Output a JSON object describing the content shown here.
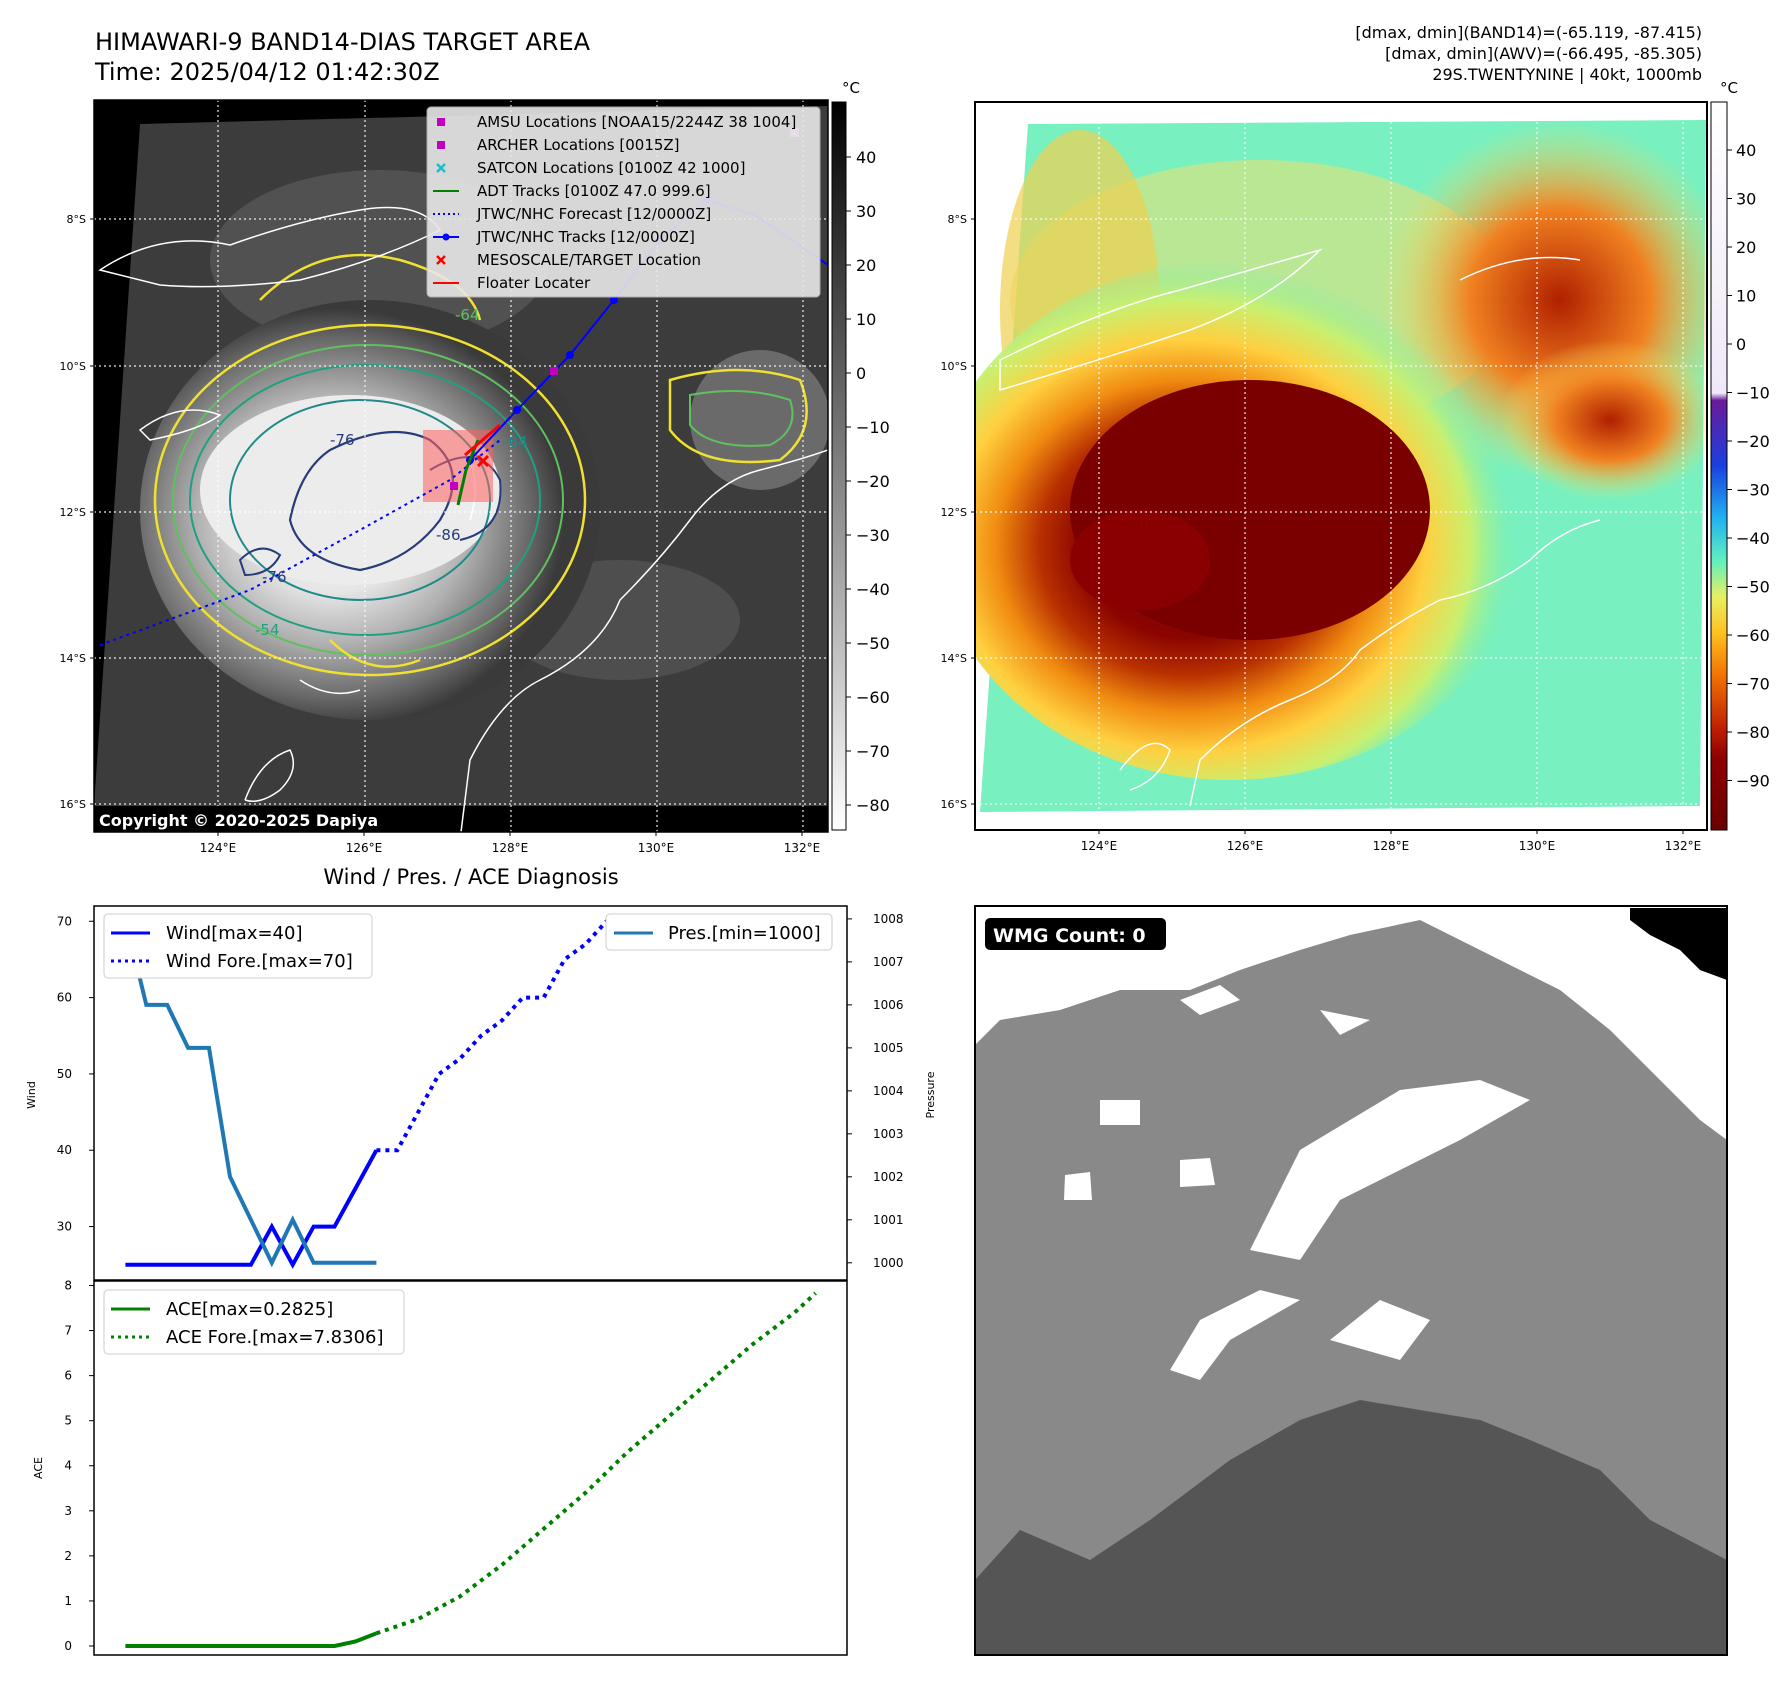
{
  "header": {
    "title_line1": "HIMAWARI-9 BAND14-DIAS TARGET AREA",
    "title_line2": "Time: 2025/04/12 01:42:30Z",
    "info_line1": "[dmax, dmin](BAND14)=(-65.119, -87.415)",
    "info_line2": "[dmax, dmin](AWV)=(-66.495, -85.305)",
    "info_line3": "29S.TWENTYNINE | 40kt, 1000mb"
  },
  "ir_panel": {
    "colorbar_unit": "°C",
    "colorbar_ticks": [
      "40",
      "30",
      "20",
      "10",
      "0",
      "−10",
      "−20",
      "−30",
      "−40",
      "−50",
      "−60",
      "−70",
      "−80"
    ],
    "copyright": "Copyright © 2020-2025 Dapiya",
    "lat_labels": [
      "8°S",
      "10°S",
      "12°S",
      "14°S",
      "16°S"
    ],
    "lon_labels": [
      "124°E",
      "126°E",
      "128°E",
      "130°E",
      "132°E"
    ],
    "contour_labels": [
      "-76",
      "-64",
      "-54",
      "-76",
      "-86",
      "-64"
    ],
    "legend": [
      {
        "label": "AMSU Locations [NOAA15/2244Z 38 1004]",
        "color": "#c000c0",
        "marker": "square"
      },
      {
        "label": "ARCHER Locations [0015Z]",
        "color": "#c000c0",
        "marker": "square"
      },
      {
        "label": "SATCON Locations [0100Z 42 1000]",
        "color": "#17becf",
        "marker": "x"
      },
      {
        "label": "ADT Tracks [0100Z 47.0 999.6]",
        "color": "#008000",
        "marker": "line"
      },
      {
        "label": "JTWC/NHC Forecast [12/0000Z]",
        "color": "#0000ff",
        "marker": "dotted"
      },
      {
        "label": "JTWC/NHC Tracks [12/0000Z]",
        "color": "#0000ff",
        "marker": "line-dot"
      },
      {
        "label": "MESOSCALE/TARGET Location",
        "color": "#ff0000",
        "marker": "x"
      },
      {
        "label": "Floater Locater",
        "color": "#ff0000",
        "marker": "line"
      }
    ]
  },
  "color_panel": {
    "colorbar_unit": "°C",
    "colorbar_ticks": [
      "40",
      "30",
      "20",
      "10",
      "0",
      "−10",
      "−20",
      "−30",
      "−40",
      "−50",
      "−60",
      "−70",
      "−80",
      "−90"
    ],
    "lat_labels": [
      "8°S",
      "10°S",
      "12°S",
      "14°S",
      "16°S"
    ],
    "lon_labels": [
      "124°E",
      "126°E",
      "128°E",
      "130°E",
      "132°E"
    ]
  },
  "wmg_panel": {
    "badge": "WMG Count: 0"
  },
  "chart_data": [
    {
      "type": "line",
      "title": "Wind / Pres. / ACE Diagnosis",
      "ylabel": "Wind",
      "ylabel_right": "Pressure",
      "ylim": [
        23,
        72
      ],
      "ylim_right": [
        999.6,
        1008.3
      ],
      "yticks": [
        30,
        40,
        50,
        60,
        70
      ],
      "yticks_right": [
        1000,
        1001,
        1002,
        1003,
        1004,
        1005,
        1006,
        1007,
        1008
      ],
      "legend_left": [
        "Wind[max=40]",
        "Wind Fore.[max=70]"
      ],
      "legend_right": [
        "Pres.[min=1000]"
      ],
      "series": [
        {
          "name": "Wind[max=40]",
          "axis": "left",
          "style": "solid",
          "color": "#0000ff",
          "x": [
            0,
            1,
            2,
            3,
            4,
            5,
            6,
            7,
            8,
            9,
            10,
            11,
            12
          ],
          "values": [
            25,
            25,
            25,
            25,
            25,
            25,
            25,
            30,
            25,
            30,
            30,
            35,
            40
          ]
        },
        {
          "name": "Wind Fore.[max=70]",
          "axis": "left",
          "style": "dotted",
          "color": "#0000ff",
          "x": [
            12,
            13,
            14,
            15,
            16,
            17,
            18,
            19,
            20,
            21,
            22,
            23,
            24,
            25,
            26,
            27,
            28,
            29,
            30,
            31,
            32,
            33
          ],
          "values": [
            40,
            40,
            45,
            50,
            52,
            55,
            57,
            60,
            60,
            65,
            67,
            70,
            70,
            70,
            70,
            70,
            70,
            70,
            70,
            70,
            70,
            68
          ]
        },
        {
          "name": "Pres.[min=1000]",
          "axis": "right",
          "style": "solid",
          "color": "#1f77b4",
          "x": [
            0,
            1,
            2,
            3,
            4,
            5,
            6,
            7,
            8,
            9,
            10,
            11,
            12
          ],
          "values": [
            1008,
            1006,
            1006,
            1005,
            1005,
            1002,
            1001,
            1000,
            1001,
            1000,
            1000,
            1000,
            1000
          ]
        }
      ]
    },
    {
      "type": "line",
      "ylabel": "ACE",
      "ylim": [
        -0.2,
        8.1
      ],
      "yticks": [
        0,
        1,
        2,
        3,
        4,
        5,
        6,
        7,
        8
      ],
      "legend": [
        "ACE[max=0.2825]",
        "ACE Fore.[max=7.8306]"
      ],
      "series": [
        {
          "name": "ACE[max=0.2825]",
          "style": "solid",
          "color": "#008000",
          "x": [
            0,
            1,
            2,
            3,
            4,
            5,
            6,
            7,
            8,
            9,
            10,
            11,
            12
          ],
          "values": [
            0,
            0,
            0,
            0,
            0,
            0,
            0,
            0,
            0,
            0,
            0,
            0.1,
            0.2825
          ]
        },
        {
          "name": "ACE Fore.[max=7.8306]",
          "style": "dotted",
          "color": "#008000",
          "x": [
            12,
            14,
            16,
            18,
            20,
            22,
            24,
            26,
            28,
            30,
            32,
            33
          ],
          "values": [
            0.2825,
            0.6,
            1.1,
            1.8,
            2.6,
            3.4,
            4.3,
            5.1,
            5.9,
            6.7,
            7.4,
            7.8306
          ]
        }
      ]
    }
  ]
}
